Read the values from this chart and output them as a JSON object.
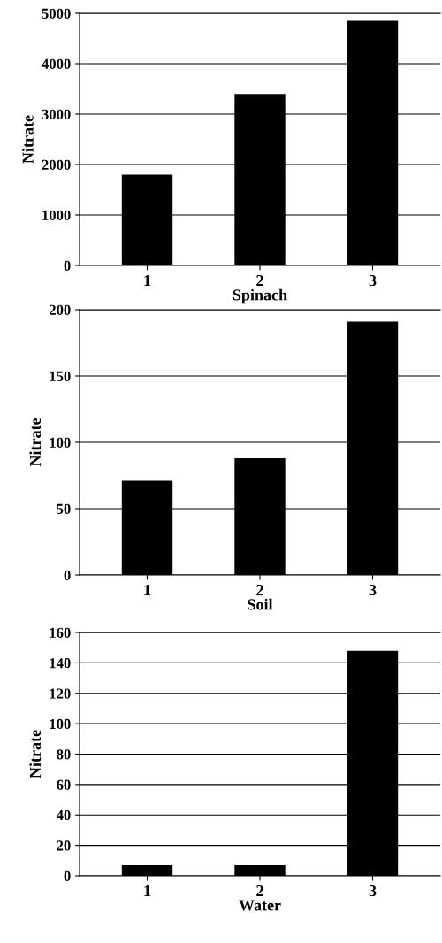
{
  "chart_data": [
    {
      "type": "bar",
      "xlabel": "Spinach",
      "ylabel": "Nitrate",
      "categories": [
        "1",
        "2",
        "3"
      ],
      "values": [
        1800,
        3400,
        4850
      ],
      "color": "#000000",
      "ylim": [
        0,
        5000
      ],
      "yticks": [
        0,
        1000,
        2000,
        3000,
        4000,
        5000
      ],
      "grid": "y"
    },
    {
      "type": "bar",
      "xlabel": "Soil",
      "ylabel": "Nitrate",
      "categories": [
        "1",
        "2",
        "3"
      ],
      "values": [
        71,
        88,
        191
      ],
      "color": "#000000",
      "ylim": [
        0,
        200
      ],
      "yticks": [
        0,
        50,
        100,
        150,
        200
      ],
      "grid": "y"
    },
    {
      "type": "bar",
      "xlabel": "Water",
      "ylabel": "Nitrate",
      "categories": [
        "1",
        "2",
        "3"
      ],
      "values": [
        7,
        7,
        148
      ],
      "color": "#000000",
      "ylim": [
        0,
        160
      ],
      "yticks": [
        0,
        20,
        40,
        60,
        80,
        100,
        120,
        140,
        160
      ],
      "grid": "y"
    }
  ]
}
